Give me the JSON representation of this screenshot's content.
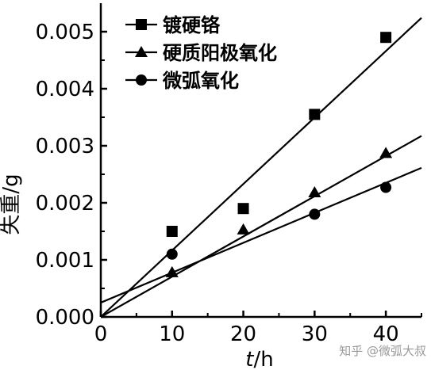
{
  "chart_data": {
    "type": "scatter",
    "xlabel_italic": "t",
    "xlabel_unit": "/h",
    "ylabel": "失重/g",
    "xlim": [
      0,
      45
    ],
    "ylim": [
      0,
      0.0055
    ],
    "x_ticks": [
      0,
      10,
      20,
      30,
      40
    ],
    "x_tick_labels": [
      "0",
      "10",
      "20",
      "30",
      "40"
    ],
    "y_ticks": [
      0,
      0.001,
      0.002,
      0.003,
      0.004,
      0.005
    ],
    "y_tick_labels": [
      "0.000",
      "0.001",
      "0.002",
      "0.003",
      "0.004",
      "0.005"
    ],
    "legend_position": "top-left",
    "series": [
      {
        "name": "镀硬铬",
        "marker": "square",
        "x": [
          10,
          20,
          30,
          40
        ],
        "y": [
          0.0015,
          0.0019,
          0.00355,
          0.0049
        ],
        "fit": {
          "intercept": 0.0,
          "slope": 0.0001165
        }
      },
      {
        "name": "硬质阳极氧化",
        "marker": "triangle",
        "x": [
          10,
          20,
          30,
          40
        ],
        "y": [
          0.00078,
          0.00153,
          0.00218,
          0.00287
        ],
        "fit": {
          "intercept": 0.0,
          "slope": 7.05e-05
        }
      },
      {
        "name": "微弧氧化",
        "marker": "circle",
        "x": [
          10,
          30,
          40
        ],
        "y": [
          0.0011,
          0.0018,
          0.00227
        ],
        "fit": {
          "intercept": 0.00025,
          "slope": 5.25e-05
        }
      }
    ]
  },
  "watermark": "知乎 @微弧大叔"
}
